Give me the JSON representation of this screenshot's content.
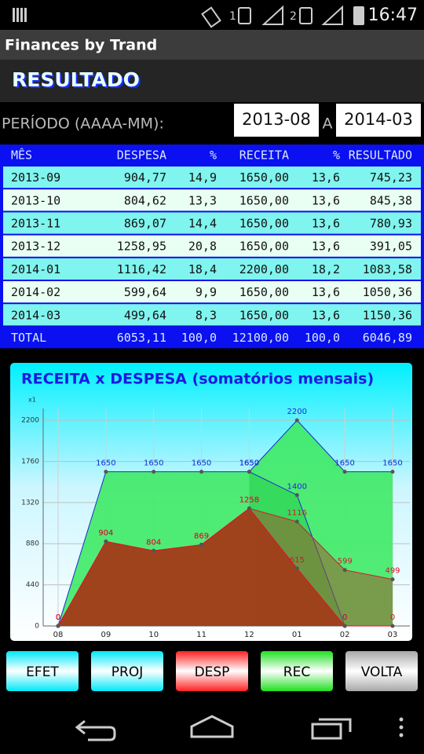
{
  "status_bar": {
    "sim1": "1",
    "sim2": "2",
    "time": "16:47"
  },
  "app_title": "Finances by Trand",
  "header": "RESULTADO",
  "period": {
    "label": "PERÍODO (AAAA-MM):",
    "from": "2013-08",
    "separator": "A",
    "to": "2014-03"
  },
  "table": {
    "columns": [
      "MÊS",
      "DESPESA",
      "%",
      "RECEITA",
      "%",
      "RESULTADO"
    ],
    "rows": [
      [
        "2013-09",
        "904,77",
        "14,9",
        "1650,00",
        "13,6",
        "745,23"
      ],
      [
        "2013-10",
        "804,62",
        "13,3",
        "1650,00",
        "13,6",
        "845,38"
      ],
      [
        "2013-11",
        "869,07",
        "14,4",
        "1650,00",
        "13,6",
        "780,93"
      ],
      [
        "2013-12",
        "1258,95",
        "20,8",
        "1650,00",
        "13,6",
        "391,05"
      ],
      [
        "2014-01",
        "1116,42",
        "18,4",
        "2200,00",
        "18,2",
        "1083,58"
      ],
      [
        "2014-02",
        "599,64",
        "9,9",
        "1650,00",
        "13,6",
        "1050,36"
      ],
      [
        "2014-03",
        "499,64",
        "8,3",
        "1650,00",
        "13,6",
        "1150,36"
      ]
    ],
    "total": [
      "TOTAL",
      "6053,11",
      "100,0",
      "12100,00",
      "100,0",
      "6046,89"
    ]
  },
  "chart_data": {
    "type": "area",
    "title": "RECEITA x DESPESA (somatórios mensais)",
    "y_label": "x1",
    "categories": [
      "08",
      "09",
      "10",
      "11",
      "12",
      "01",
      "02",
      "03"
    ],
    "ylim": [
      0,
      2327
    ],
    "yticks": [
      0,
      440,
      880,
      1320,
      1760,
      2200
    ],
    "grid": true,
    "series": [
      {
        "color": "#1a2bd0",
        "fill": "#3fea66",
        "values": [
          0,
          1650,
          1650,
          1650,
          1650,
          2200,
          1650,
          1650
        ]
      },
      {
        "color": "#1a2bd0",
        "fill": "#34d85a",
        "values": [
          null,
          null,
          null,
          null,
          1650,
          1400,
          0,
          null
        ]
      },
      {
        "color": "#e01030",
        "fill": "#9a5a2a",
        "values": [
          0,
          904,
          804,
          869,
          1258,
          1116,
          599,
          499
        ]
      },
      {
        "color": "#e01030",
        "fill": "#a33a18",
        "values": [
          0,
          904,
          804,
          869,
          1258,
          615,
          0,
          0
        ]
      }
    ]
  },
  "buttons": [
    "EFET",
    "PROJ",
    "DESP",
    "REC",
    "VOLTA"
  ]
}
